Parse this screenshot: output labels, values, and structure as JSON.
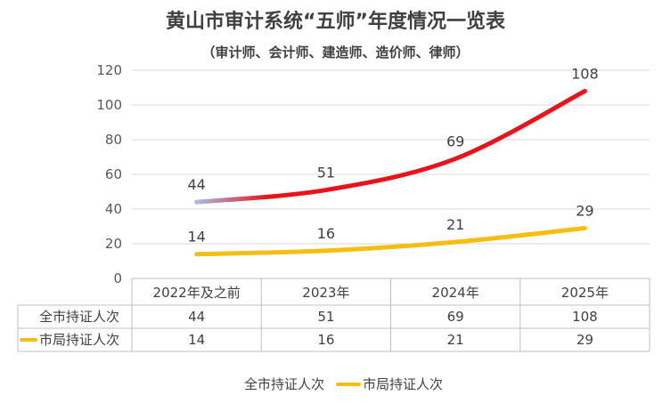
{
  "chart_data": {
    "type": "line",
    "title": "黄山市审计系统“五师”年度情况一览表",
    "subtitle": "（审计师、会计师、建造师、造价师、律师）",
    "categories": [
      "2022年及之前",
      "2023年",
      "2024年",
      "2025年"
    ],
    "series": [
      {
        "name": "全市持证人次",
        "values": [
          44,
          51,
          69,
          108
        ],
        "color": "#e8141a",
        "start_color": "#a9bde3"
      },
      {
        "name": "市局持证人次",
        "values": [
          14,
          16,
          21,
          29
        ],
        "color": "#f5be12"
      }
    ],
    "ylim": [
      0,
      120
    ],
    "yticks": [
      "0",
      "20",
      "40",
      "60",
      "80",
      "100",
      "120"
    ],
    "grid": true,
    "data_table": true,
    "legend": "bottom"
  }
}
